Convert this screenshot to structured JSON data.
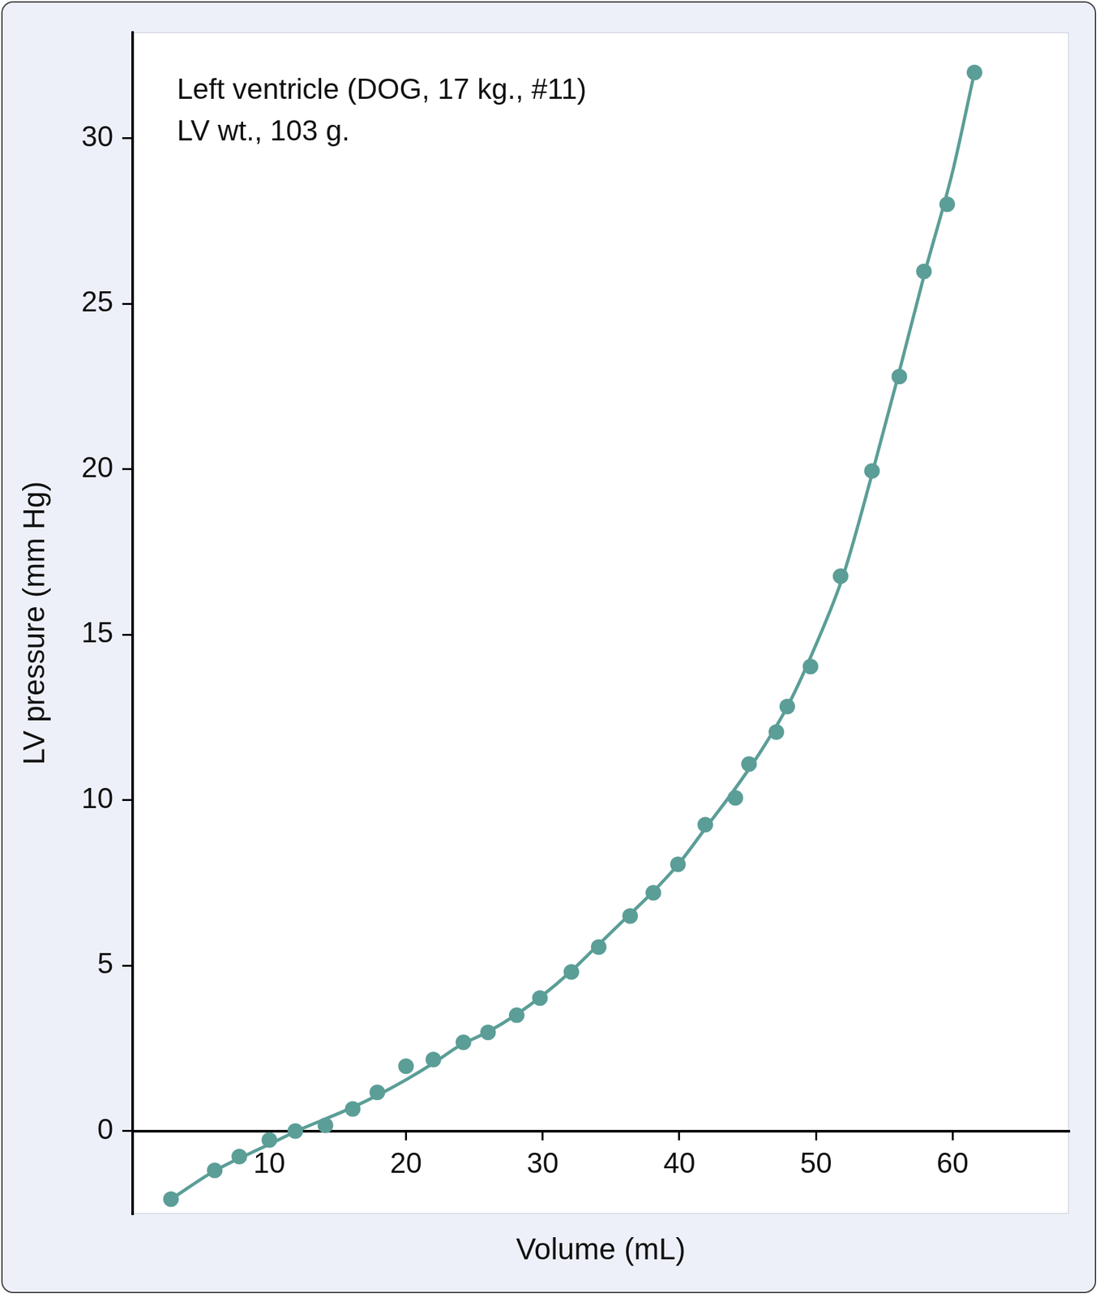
{
  "chart_data": {
    "type": "scatter",
    "annotations": [
      "Left ventricle (DOG, 17 kg., #11)",
      "LV wt., 103 g."
    ],
    "x_label": "Volume (mL)",
    "y_label": "LV pressure (mm Hg)",
    "series": [
      {
        "type": "scatter",
        "marker": "circle",
        "color": "#5b9e97",
        "x": [
          2.8,
          6.0,
          7.8,
          10.0,
          11.9,
          14.1,
          16.1,
          17.9,
          20.0,
          22.0,
          24.2,
          26.0,
          28.1,
          29.8,
          32.1,
          34.1,
          36.4,
          38.1,
          39.9,
          41.9,
          44.1,
          45.1,
          47.1,
          47.9,
          49.6,
          51.8,
          54.1,
          56.1,
          57.9,
          59.6,
          61.6
        ],
        "values": [
          -2.06,
          -1.19,
          -0.77,
          -0.27,
          0.0,
          0.17,
          0.67,
          1.17,
          1.96,
          2.16,
          2.68,
          2.98,
          3.5,
          4.02,
          4.81,
          5.56,
          6.5,
          7.2,
          8.06,
          9.26,
          10.07,
          11.09,
          12.06,
          12.83,
          14.04,
          16.77,
          19.95,
          22.8,
          25.98,
          28.01,
          31.99
        ]
      },
      {
        "type": "line",
        "line_style": "solid",
        "color": "#5b9e97",
        "x": [
          2.8,
          6,
          10,
          12,
          14,
          16,
          18,
          20,
          22,
          24,
          26,
          28,
          30,
          32,
          34,
          36,
          38,
          40,
          42,
          44,
          46,
          48,
          50,
          52,
          54,
          56,
          58,
          60,
          61.6
        ],
        "values": [
          -2.06,
          -1.2,
          -0.4,
          0.0,
          0.35,
          0.7,
          1.1,
          1.55,
          2.05,
          2.6,
          3.0,
          3.5,
          4.1,
          4.8,
          5.6,
          6.4,
          7.2,
          8.1,
          9.2,
          10.3,
          11.5,
          12.9,
          14.7,
          16.8,
          19.7,
          22.8,
          26.0,
          29.0,
          32.0
        ]
      }
    ],
    "xlim": [
      0,
      68.5
    ],
    "xticks": [
      10,
      20,
      30,
      40,
      50,
      60
    ],
    "ylim": [
      -2.5,
      33.2
    ],
    "yticks": [
      0,
      5,
      10,
      15,
      20,
      25,
      30
    ],
    "grid": false
  }
}
